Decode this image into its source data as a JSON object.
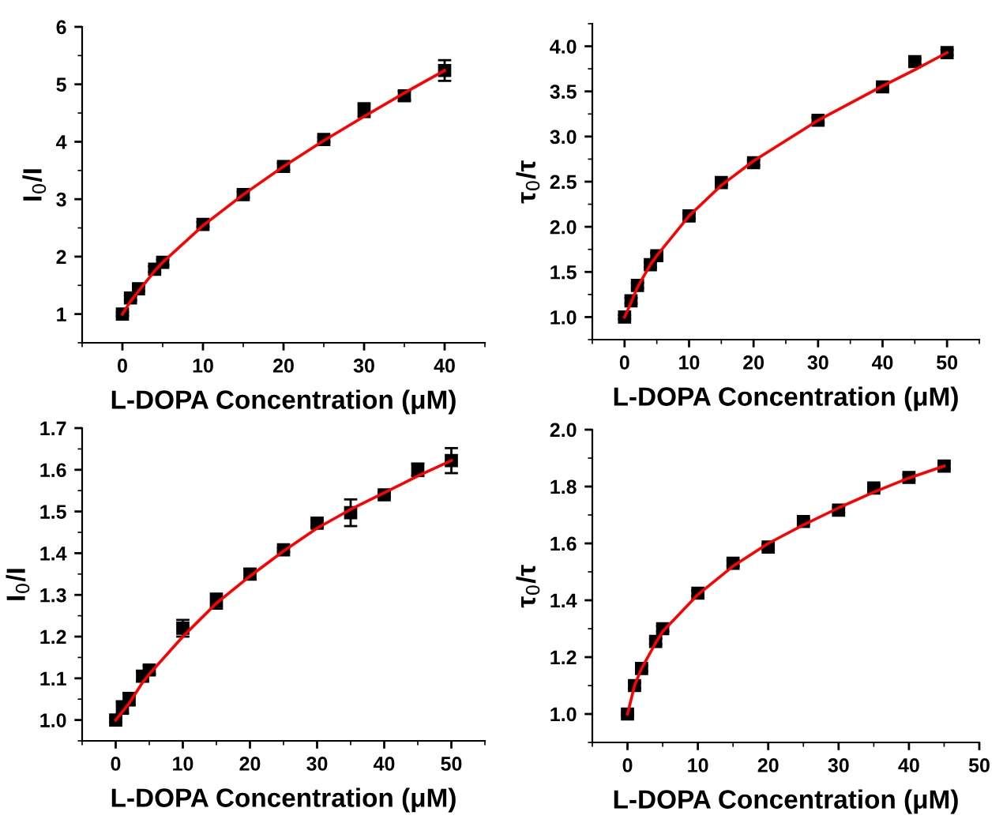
{
  "chart_data": [
    {
      "type": "scatter",
      "xlabel": "L-DOPA Concentration (μM)",
      "ylabel": "I$_{0}$/I",
      "xlim": [
        -5,
        45
      ],
      "xticks": [
        0,
        10,
        20,
        30,
        40
      ],
      "ylim": [
        0.5,
        6
      ],
      "yticks": [
        1,
        2,
        3,
        4,
        5,
        6
      ],
      "grid": false,
      "legend": false,
      "series": [
        {
          "marker": "square",
          "color": "#000000",
          "x": [
            0,
            1,
            2,
            4,
            5,
            10,
            15,
            20,
            25,
            30,
            35,
            40
          ],
          "values": [
            1.0,
            1.28,
            1.44,
            1.78,
            1.9,
            2.56,
            3.08,
            3.57,
            4.04,
            4.55,
            4.8,
            5.24
          ],
          "errors": [
            0.03,
            0.04,
            0.04,
            0.05,
            0.05,
            0.04,
            0.05,
            0.06,
            0.04,
            0.12,
            0.08,
            0.18
          ]
        },
        {
          "type": "line",
          "color": "#ff0000",
          "x": [
            0,
            1,
            2,
            4,
            5,
            10,
            15,
            20,
            25,
            30,
            35,
            40
          ],
          "values": [
            1.0,
            1.22,
            1.4,
            1.75,
            1.9,
            2.54,
            3.08,
            3.57,
            4.02,
            4.44,
            4.85,
            5.24
          ]
        }
      ]
    },
    {
      "type": "scatter",
      "xlabel": "L-DOPA Concentration (μM)",
      "ylabel": "τ$_{0}$/τ",
      "xlim": [
        -5,
        55
      ],
      "xticks": [
        0,
        10,
        20,
        30,
        40,
        50
      ],
      "ylim": [
        0.75,
        4.25
      ],
      "yticks": [
        {
          "value": 1,
          "label": "1.0"
        },
        {
          "value": 1.5,
          "label": "1.5"
        },
        {
          "value": 2,
          "label": "2.0"
        },
        {
          "value": 2.5,
          "label": "2.5"
        },
        {
          "value": 3,
          "label": "3.0"
        },
        {
          "value": 3.5,
          "label": "3.5"
        },
        {
          "value": 4,
          "label": "4.0"
        }
      ],
      "grid": false,
      "legend": false,
      "series": [
        {
          "marker": "square",
          "color": "#000000",
          "x": [
            0,
            1,
            2,
            4,
            5,
            10,
            15,
            20,
            30,
            40,
            45,
            50
          ],
          "values": [
            1.0,
            1.18,
            1.35,
            1.58,
            1.68,
            2.12,
            2.49,
            2.71,
            3.18,
            3.55,
            3.83,
            3.93
          ],
          "errors": [
            0.02,
            0.03,
            0.03,
            0.03,
            0.03,
            0.03,
            0.03,
            0.03,
            0.03,
            0.03,
            0.03,
            0.03
          ]
        },
        {
          "type": "line",
          "color": "#ff0000",
          "x": [
            0,
            1,
            2,
            4,
            5,
            10,
            15,
            20,
            30,
            40,
            45,
            50
          ],
          "values": [
            1.0,
            1.16,
            1.33,
            1.58,
            1.68,
            2.12,
            2.46,
            2.73,
            3.18,
            3.56,
            3.74,
            3.93
          ]
        }
      ]
    },
    {
      "type": "scatter",
      "xlabel": "L-DOPA Concentration (μM)",
      "ylabel": "I$_{0}$/I",
      "xlim": [
        -5,
        55
      ],
      "xticks": [
        0,
        10,
        20,
        30,
        40,
        50
      ],
      "ylim": [
        0.95,
        1.7
      ],
      "yticks": [
        {
          "value": 1,
          "label": "1.0"
        },
        1.1,
        1.2,
        1.3,
        1.4,
        1.5,
        1.6,
        1.7
      ],
      "grid": false,
      "legend": false,
      "series": [
        {
          "marker": "square",
          "color": "#000000",
          "x": [
            0,
            1,
            2,
            4,
            5,
            10,
            15,
            20,
            25,
            30,
            35,
            40,
            45,
            50
          ],
          "values": [
            1.0,
            1.03,
            1.05,
            1.105,
            1.12,
            1.22,
            1.285,
            1.35,
            1.408,
            1.472,
            1.497,
            1.54,
            1.6,
            1.622
          ],
          "errors": [
            0.005,
            0.015,
            0.015,
            0.012,
            0.01,
            0.02,
            0.018,
            0.012,
            0.005,
            0.008,
            0.032,
            0.005,
            0.015,
            0.03
          ]
        },
        {
          "type": "line",
          "color": "#ff0000",
          "x": [
            0,
            1,
            2,
            4,
            5,
            10,
            15,
            20,
            25,
            30,
            35,
            40,
            45,
            50
          ],
          "values": [
            1.0,
            1.02,
            1.04,
            1.09,
            1.11,
            1.2,
            1.28,
            1.345,
            1.405,
            1.46,
            1.505,
            1.545,
            1.585,
            1.622
          ]
        }
      ]
    },
    {
      "type": "scatter",
      "xlabel": "L-DOPA Concentration (μM)",
      "ylabel": "τ$_{0}$/τ",
      "xlim": [
        -5,
        50
      ],
      "xticks": [
        0,
        10,
        20,
        30,
        40,
        50
      ],
      "ylim": [
        0.9,
        2.0
      ],
      "yticks": [
        {
          "value": 1,
          "label": "1.0"
        },
        1.2,
        1.4,
        1.6,
        1.8,
        {
          "value": 2,
          "label": "2.0"
        }
      ],
      "grid": false,
      "legend": false,
      "series": [
        {
          "marker": "square",
          "color": "#000000",
          "x": [
            0,
            1,
            2,
            4,
            5,
            10,
            15,
            20,
            25,
            30,
            35,
            40,
            45
          ],
          "values": [
            1.0,
            1.1,
            1.16,
            1.255,
            1.3,
            1.425,
            1.53,
            1.587,
            1.677,
            1.717,
            1.795,
            1.832,
            1.872
          ],
          "errors": [
            0.005,
            0.01,
            0.01,
            0.01,
            0.01,
            0.01,
            0.01,
            0.01,
            0.01,
            0.01,
            0.01,
            0.01,
            0.01
          ]
        },
        {
          "type": "line",
          "color": "#ff0000",
          "x": [
            0,
            1,
            2,
            4,
            5,
            10,
            15,
            20,
            25,
            30,
            35,
            40,
            45
          ],
          "values": [
            1.0,
            1.1,
            1.16,
            1.25,
            1.29,
            1.42,
            1.52,
            1.6,
            1.665,
            1.725,
            1.78,
            1.83,
            1.872
          ]
        }
      ]
    }
  ]
}
